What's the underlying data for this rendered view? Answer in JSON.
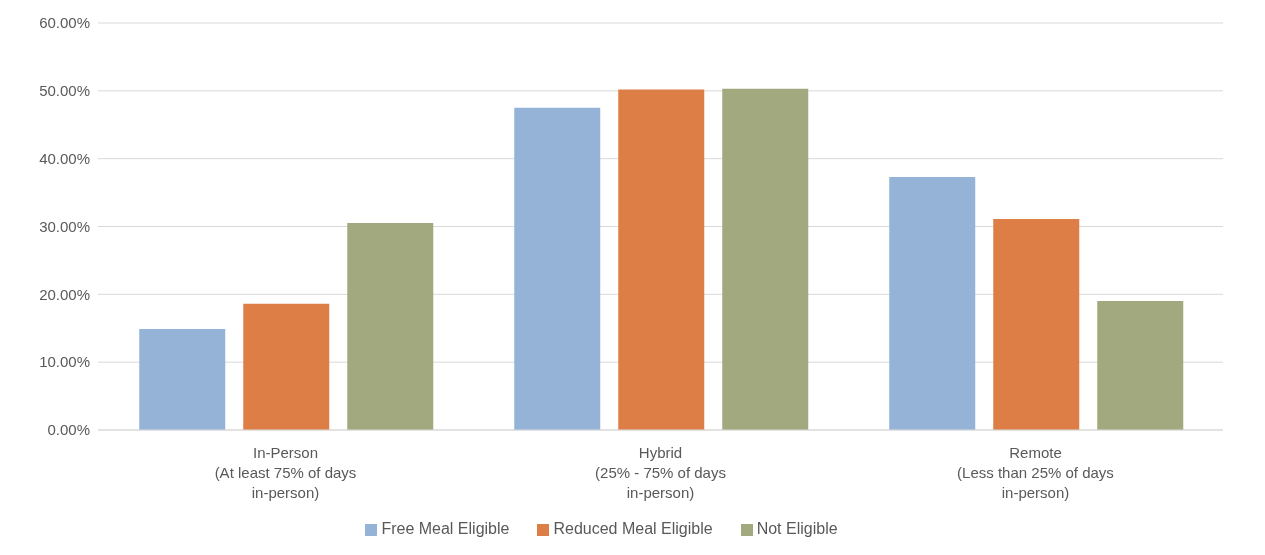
{
  "chart_data": {
    "type": "bar",
    "categories": [
      "In-Person\n(At least 75% of days\nin-person)",
      "Hybrid\n(25% - 75% of days\nin-person)",
      "Remote\n(Less than 25% of days\nin-person)"
    ],
    "series": [
      {
        "name": "Free Meal Eligible",
        "color": "#95b3d7",
        "values": [
          14.9,
          47.5,
          37.3
        ]
      },
      {
        "name": "Reduced Meal Eligible",
        "color": "#dd7e47",
        "values": [
          18.6,
          50.2,
          31.1
        ]
      },
      {
        "name": "Not Eligible",
        "color": "#a3a97e",
        "values": [
          30.5,
          50.3,
          19.0
        ]
      }
    ],
    "ylim": [
      0,
      60
    ],
    "yticks": [
      {
        "value": 0,
        "label": "0.00%"
      },
      {
        "value": 10,
        "label": "10.00%"
      },
      {
        "value": 20,
        "label": "20.00%"
      },
      {
        "value": 30,
        "label": "30.00%"
      },
      {
        "value": 40,
        "label": "40.00%"
      },
      {
        "value": 50,
        "label": "50.00%"
      },
      {
        "value": 60,
        "label": "60.00%"
      }
    ],
    "grid": "y",
    "legend": "bottom"
  }
}
